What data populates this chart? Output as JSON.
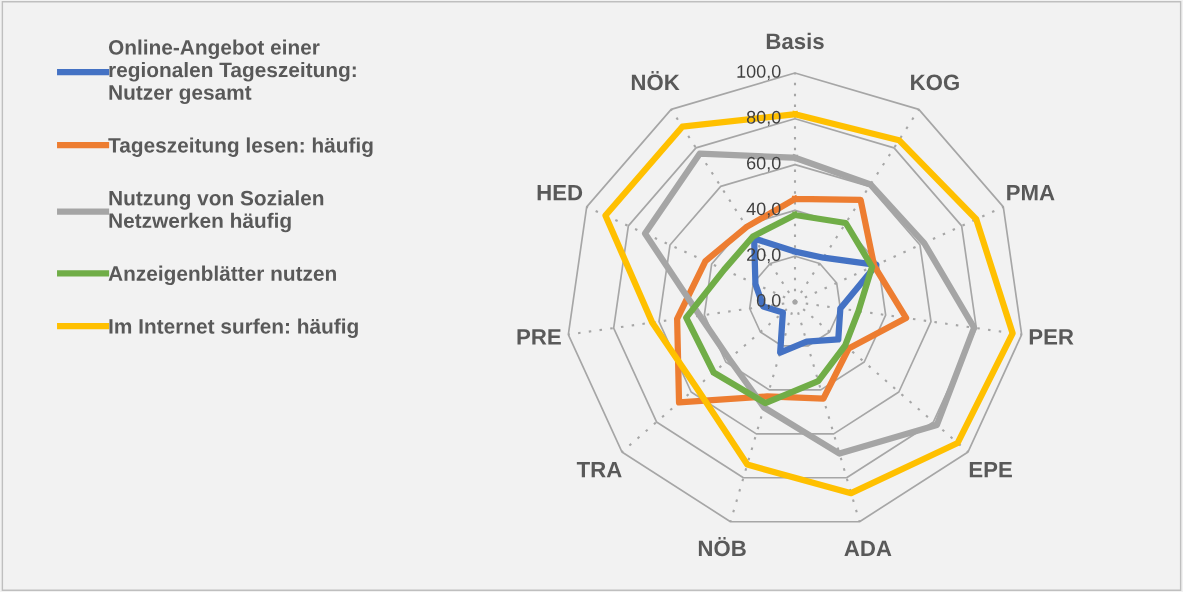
{
  "chart_data": {
    "type": "radar",
    "categories": [
      "Basis",
      "KOG",
      "PMA",
      "PER",
      "EPE",
      "ADA",
      "NÖB",
      "TRA",
      "PRE",
      "HED",
      "NÖK"
    ],
    "series": [
      {
        "name": "Online-Angebot einer regionalen Tageszeitung: Nutzer gesamt",
        "color": "#4472c4",
        "values": [
          22,
          23,
          39,
          20,
          25,
          18,
          23,
          7,
          14,
          19,
          33
        ]
      },
      {
        "name": "Tageszeitung lesen: häufig",
        "color": "#ed7d31",
        "values": [
          45,
          53,
          38,
          49,
          31,
          44,
          43,
          67,
          52,
          43,
          39
        ]
      },
      {
        "name": "Nutzung von Sozialen Netzwerken häufig",
        "color": "#a5a5a5",
        "values": [
          63,
          61,
          62,
          79,
          82,
          69,
          48,
          38,
          42,
          72,
          77
        ]
      },
      {
        "name": "Anzeigenblätter nutzen",
        "color": "#70ad47",
        "values": [
          38,
          41,
          37,
          28,
          29,
          36,
          46,
          47,
          48,
          34,
          34
        ]
      },
      {
        "name": "Im Internet surfen: häufig",
        "color": "#ffc000",
        "values": [
          82,
          84,
          87,
          96,
          94,
          87,
          74,
          57,
          63,
          91,
          91
        ]
      }
    ],
    "ylim": [
      0,
      100
    ],
    "yticks": [
      {
        "value": 0,
        "label": "0,0"
      },
      {
        "value": 20,
        "label": "20,0"
      },
      {
        "value": 40,
        "label": "40,0"
      },
      {
        "value": 60,
        "label": "60,0"
      },
      {
        "value": 80,
        "label": "80,0"
      },
      {
        "value": 100,
        "label": "100,0"
      }
    ],
    "grid": true,
    "legend": "left",
    "marker": "none",
    "line_style": "solid"
  }
}
